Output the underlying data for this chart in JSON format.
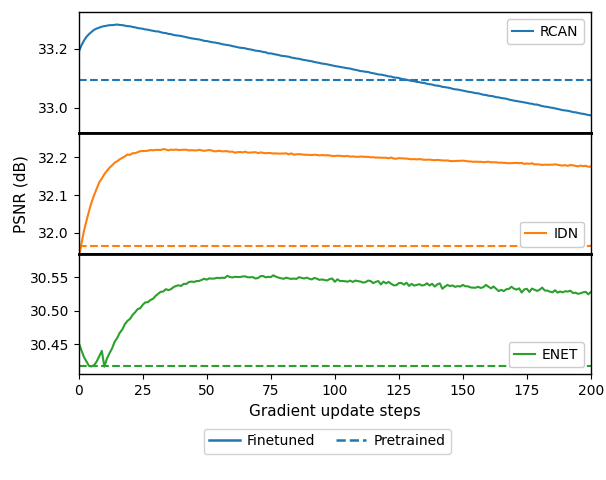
{
  "xlabel": "Gradient update steps",
  "ylabel": "PSNR (dB)",
  "x_ticks": [
    0,
    25,
    50,
    75,
    100,
    125,
    150,
    175,
    200
  ],
  "rcan_color": "#1f77b4",
  "idn_color": "#ff7f0e",
  "enet_color": "#2ca02c",
  "rcan_pretrained": 33.095,
  "idn_pretrained": 31.966,
  "enet_pretrained": 30.418,
  "rcan_ylim": [
    32.915,
    33.325
  ],
  "idn_ylim": [
    31.945,
    32.265
  ],
  "enet_ylim": [
    30.405,
    30.585
  ],
  "rcan_yticks": [
    33.0,
    33.2
  ],
  "idn_yticks": [
    32.0,
    32.1,
    32.2
  ],
  "enet_yticks": [
    30.45,
    30.5,
    30.55
  ],
  "legend_labels": [
    "Finetuned",
    "Pretrained"
  ],
  "legend_color": "#1f77b4",
  "n_steps": 200,
  "figsize": [
    6.06,
    4.8
  ],
  "dpi": 100
}
